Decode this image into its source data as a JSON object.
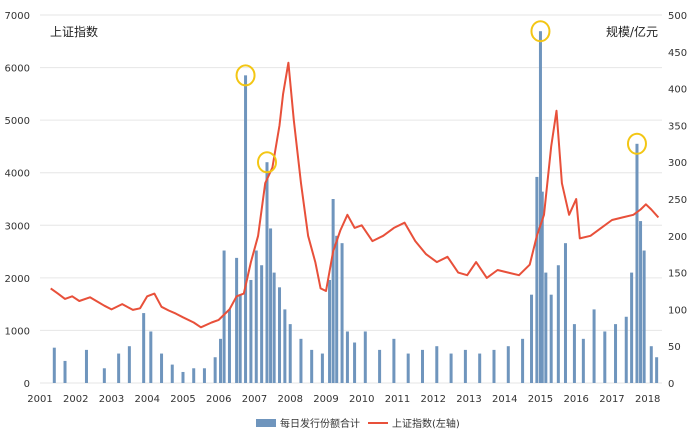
{
  "chart_data": {
    "type": "bar+line",
    "title": "",
    "left_axis_label": "上证指数",
    "right_axis_label": "规模/亿元",
    "left_ylim": [
      0,
      7000
    ],
    "left_ticks": [
      0,
      1000,
      2000,
      3000,
      4000,
      5000,
      6000,
      7000
    ],
    "right_ylim": [
      0,
      500
    ],
    "right_ticks": [
      0,
      50,
      100,
      150,
      200,
      250,
      300,
      350,
      400,
      450,
      500
    ],
    "x_range": [
      2001.0,
      2018.4
    ],
    "x_tick_labels": [
      "2001",
      "2002",
      "2003",
      "2004",
      "2005",
      "2006",
      "2007",
      "2008",
      "2009",
      "2010",
      "2011",
      "2012",
      "2013",
      "2014",
      "2015",
      "2016",
      "2017",
      "2018"
    ],
    "grid": "horizontal",
    "legend_position": "bottom",
    "legend": [
      "每日发行份额合计",
      "上证指数(左轴)"
    ],
    "colors": {
      "bar": "#6f95bd",
      "line": "#e8503a",
      "highlight": "#f3c614"
    },
    "series": [
      {
        "name": "上证指数(左轴)",
        "axis": "left",
        "type": "line",
        "x": [
          2001.3,
          2001.5,
          2001.7,
          2001.9,
          2002.1,
          2002.4,
          2002.6,
          2002.8,
          2003.0,
          2003.3,
          2003.6,
          2003.8,
          2004.0,
          2004.2,
          2004.4,
          2004.6,
          2004.8,
          2005.0,
          2005.3,
          2005.5,
          2005.8,
          2006.0,
          2006.3,
          2006.5,
          2006.7,
          2006.9,
          2007.1,
          2007.3,
          2007.5,
          2007.7,
          2007.8,
          2007.95,
          2008.1,
          2008.3,
          2008.5,
          2008.7,
          2008.85,
          2009.0,
          2009.2,
          2009.4,
          2009.6,
          2009.8,
          2010.0,
          2010.3,
          2010.6,
          2010.9,
          2011.2,
          2011.5,
          2011.8,
          2012.1,
          2012.4,
          2012.7,
          2012.95,
          2013.2,
          2013.5,
          2013.8,
          2014.1,
          2014.4,
          2014.7,
          2014.9,
          2015.1,
          2015.3,
          2015.45,
          2015.6,
          2015.8,
          2016.0,
          2016.1,
          2016.4,
          2016.7,
          2017.0,
          2017.3,
          2017.6,
          2017.8,
          2017.95,
          2018.1,
          2018.3
        ],
        "values": [
          1800,
          1700,
          1600,
          1650,
          1560,
          1630,
          1550,
          1470,
          1400,
          1500,
          1390,
          1420,
          1650,
          1700,
          1450,
          1380,
          1320,
          1250,
          1150,
          1060,
          1150,
          1200,
          1400,
          1650,
          1700,
          2300,
          2800,
          3800,
          4100,
          4900,
          5500,
          6092,
          5000,
          3800,
          2800,
          2300,
          1800,
          1750,
          2500,
          2900,
          3200,
          2950,
          3000,
          2700,
          2800,
          2950,
          3050,
          2700,
          2450,
          2300,
          2400,
          2100,
          2050,
          2300,
          2000,
          2150,
          2100,
          2050,
          2250,
          2800,
          3200,
          4500,
          5178,
          3800,
          3200,
          3500,
          2750,
          2800,
          2950,
          3100,
          3150,
          3200,
          3300,
          3400,
          3300,
          3150
        ]
      },
      {
        "name": "每日发行份额合计",
        "axis": "right",
        "type": "bar",
        "x": [
          2001.4,
          2001.7,
          2002.3,
          2002.8,
          2003.2,
          2003.5,
          2003.9,
          2004.1,
          2004.4,
          2004.7,
          2005.0,
          2005.3,
          2005.6,
          2005.9,
          2006.05,
          2006.15,
          2006.3,
          2006.5,
          2006.6,
          2006.75,
          2006.9,
          2007.05,
          2007.2,
          2007.35,
          2007.45,
          2007.55,
          2007.7,
          2007.85,
          2008.0,
          2008.3,
          2008.6,
          2008.9,
          2009.1,
          2009.2,
          2009.3,
          2009.45,
          2009.6,
          2009.8,
          2010.1,
          2010.5,
          2010.9,
          2011.3,
          2011.7,
          2012.1,
          2012.5,
          2012.9,
          2013.3,
          2013.7,
          2014.1,
          2014.5,
          2014.75,
          2014.9,
          2015.0,
          2015.05,
          2015.15,
          2015.3,
          2015.5,
          2015.7,
          2015.95,
          2016.2,
          2016.5,
          2016.8,
          2017.1,
          2017.4,
          2017.55,
          2017.7,
          2017.8,
          2017.9,
          2018.1,
          2018.25
        ],
        "values": [
          48,
          30,
          45,
          20,
          40,
          50,
          95,
          70,
          40,
          25,
          15,
          20,
          20,
          35,
          60,
          180,
          100,
          170,
          120,
          418,
          140,
          180,
          160,
          300,
          210,
          150,
          130,
          100,
          80,
          60,
          45,
          40,
          140,
          250,
          200,
          190,
          70,
          55,
          70,
          45,
          60,
          40,
          45,
          50,
          40,
          45,
          40,
          45,
          50,
          60,
          120,
          280,
          478,
          260,
          150,
          120,
          160,
          190,
          80,
          60,
          100,
          70,
          80,
          90,
          150,
          325,
          220,
          180,
          50,
          35
        ]
      }
    ],
    "highlighted_peaks": [
      {
        "series": "每日发行份额合计",
        "x": 2006.75,
        "value": 418
      },
      {
        "series": "每日发行份额合计",
        "x": 2007.35,
        "value": 300
      },
      {
        "series": "每日发行份额合计",
        "x": 2015.0,
        "value": 478
      },
      {
        "series": "每日发行份额合计",
        "x": 2017.7,
        "value": 325
      }
    ]
  }
}
